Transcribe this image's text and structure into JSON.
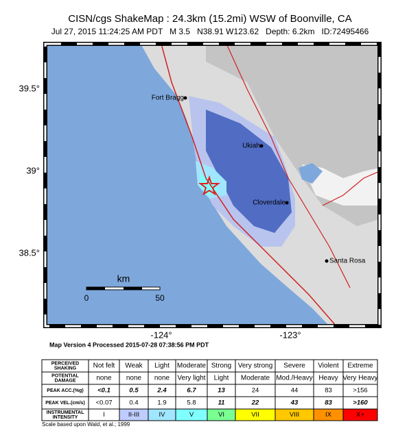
{
  "header": {
    "title": "CISN/cgs ShakeMap : 24.3km (15.2mi) WSW of Boonville, CA",
    "subtitle": "Jul 27, 2015 11:24:25 AM PDT   M 3.5   N38.91 W123.62   Depth: 6.2km   ID:72495466"
  },
  "map": {
    "lat_labels": [
      "39.5°",
      "39°",
      "38.5°"
    ],
    "lon_labels": [
      "-124°",
      "-123°"
    ],
    "cities": [
      "Fort Bragg",
      "Ukiah",
      "Cloverdale",
      "Santa Rosa"
    ],
    "scale": {
      "unit": "km",
      "labels": [
        "0",
        "50"
      ]
    }
  },
  "processed": "Map Version 4 Processed 2015-07-28 07:38:56 PM PDT",
  "legend": {
    "rows": [
      {
        "label": [
          "PERCEIVED",
          "SHAKING"
        ],
        "cells": [
          "Not felt",
          "Weak",
          "Light",
          "Moderate",
          "Strong",
          "Very strong",
          "Severe",
          "Violent",
          "Extreme"
        ]
      },
      {
        "label": [
          "POTENTIAL",
          "DAMAGE"
        ],
        "cells": [
          "none",
          "none",
          "none",
          "Very light",
          "Light",
          "Moderate",
          "Mod./Heavy",
          "Heavy",
          "Very Heavy"
        ]
      },
      {
        "label": [
          "PEAK ACC.(%g)"
        ],
        "cells": [
          "<0.1",
          0.5,
          2.4,
          6.7,
          13,
          24,
          44,
          83,
          ">156"
        ]
      },
      {
        "label": [
          "PEAK VEL.(cm/s)"
        ],
        "cells": [
          "<0.07",
          0.4,
          1.9,
          5.8,
          11,
          22,
          43,
          83,
          ">160"
        ]
      },
      {
        "label": [
          "INSTRUMENTAL",
          "INTENSITY"
        ],
        "cells": [
          "I",
          "II-III",
          "IV",
          "V",
          "VI",
          "VII",
          "VIII",
          "IX",
          "X+"
        ]
      }
    ],
    "footnote": "Scale based upon Wald, et al.; 1999"
  }
}
